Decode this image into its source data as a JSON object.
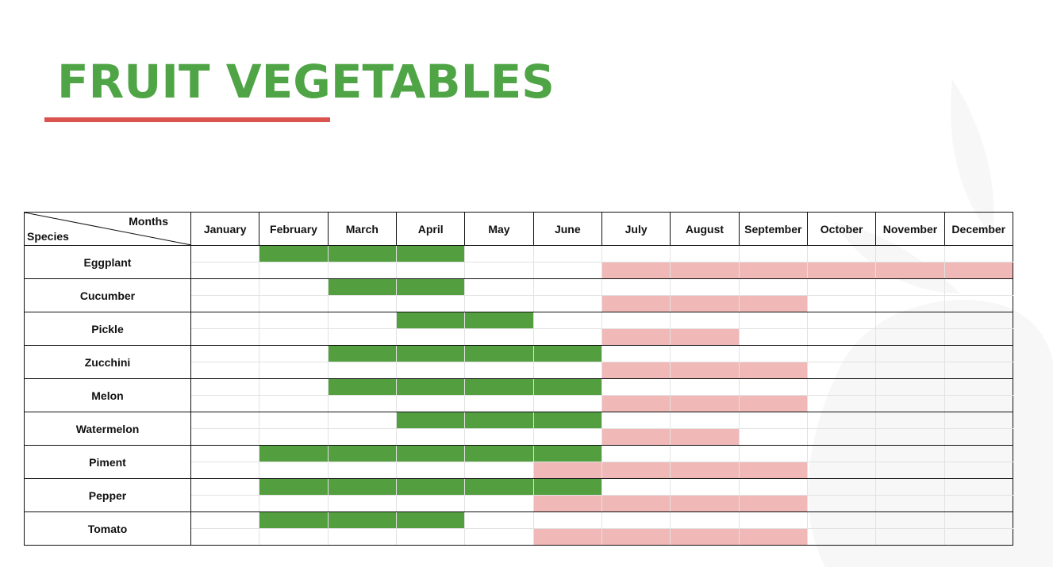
{
  "page_title": "FRUIT VEGETABLES",
  "colors": {
    "title": "#4fa546",
    "underline": "#d9534f",
    "sowing": "#539f3f",
    "harvest": "#f0b8b7",
    "grid": "#e2e2e2",
    "border": "#111111"
  },
  "chart_data": {
    "type": "table",
    "corner_labels": {
      "columns": "Months",
      "rows": "Species"
    },
    "months": [
      "January",
      "February",
      "March",
      "April",
      "May",
      "June",
      "July",
      "August",
      "September",
      "October",
      "November",
      "December"
    ],
    "species": [
      {
        "name": "Eggplant",
        "sowing": [
          2,
          4
        ],
        "harvest": [
          7,
          12
        ]
      },
      {
        "name": "Cucumber",
        "sowing": [
          3,
          4
        ],
        "harvest": [
          7,
          9
        ]
      },
      {
        "name": "Pickle",
        "sowing": [
          4,
          5
        ],
        "harvest": [
          7,
          8
        ]
      },
      {
        "name": "Zucchini",
        "sowing": [
          3,
          6
        ],
        "harvest": [
          7,
          9
        ]
      },
      {
        "name": "Melon",
        "sowing": [
          3,
          6
        ],
        "harvest": [
          7,
          9
        ]
      },
      {
        "name": "Watermelon",
        "sowing": [
          4,
          6
        ],
        "harvest": [
          7,
          8
        ]
      },
      {
        "name": "Piment",
        "sowing": [
          2,
          6
        ],
        "harvest": [
          6,
          9
        ]
      },
      {
        "name": "Pepper",
        "sowing": [
          2,
          6
        ],
        "harvest": [
          6,
          9
        ]
      },
      {
        "name": "Tomato",
        "sowing": [
          2,
          4
        ],
        "harvest": [
          6,
          9
        ]
      }
    ]
  }
}
